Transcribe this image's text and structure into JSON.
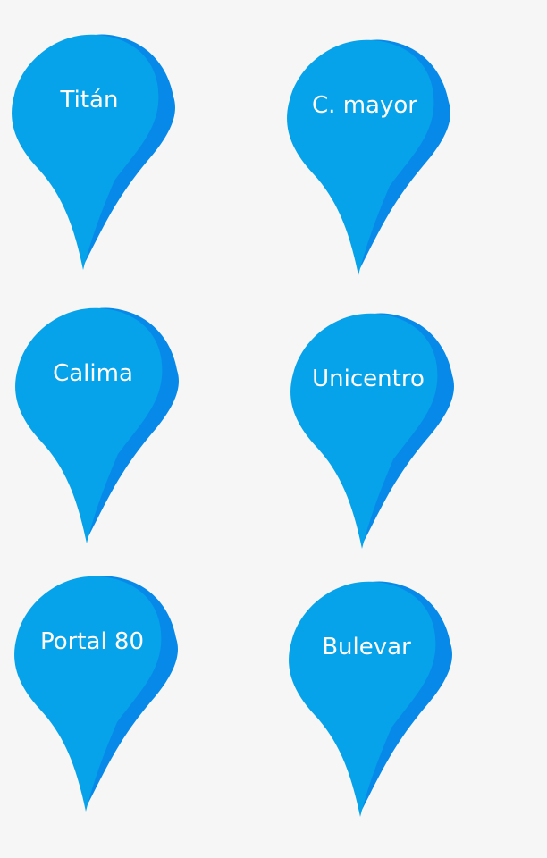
{
  "colors": {
    "background": "#f6f6f6",
    "pin_fill": "#07a3ea",
    "pin_shadow": "#0789ea",
    "label": "#ffffff"
  },
  "pins": [
    {
      "label": "Titán",
      "icon": "map-pin-icon"
    },
    {
      "label": "C. mayor",
      "icon": "map-pin-icon"
    },
    {
      "label": "Calima",
      "icon": "map-pin-icon"
    },
    {
      "label": "Unicentro",
      "icon": "map-pin-icon"
    },
    {
      "label": "Portal 80",
      "icon": "map-pin-icon"
    },
    {
      "label": "Bulevar",
      "icon": "map-pin-icon"
    }
  ]
}
